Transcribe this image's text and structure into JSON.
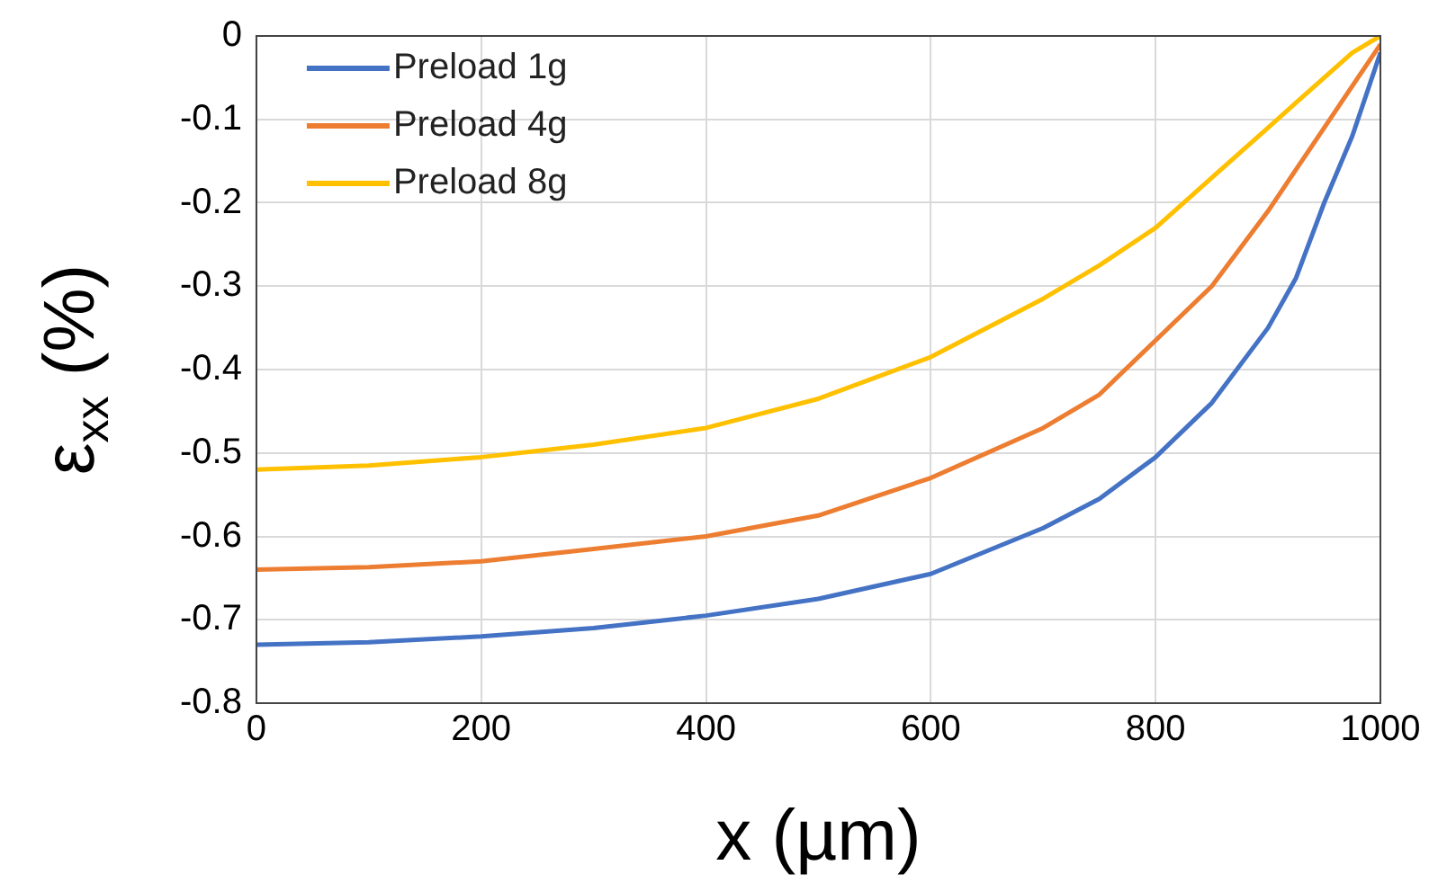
{
  "chart_data": {
    "type": "line",
    "xlabel": "x (µm)",
    "ylabel": "ε$_{xx}$ (%)",
    "x": [
      0,
      100,
      200,
      300,
      400,
      500,
      600,
      700,
      750,
      800,
      850,
      900,
      925,
      950,
      975,
      1000
    ],
    "xlim": [
      0,
      1000
    ],
    "xticks": [
      0,
      200,
      400,
      600,
      800,
      1000
    ],
    "ylim": [
      -0.8,
      0
    ],
    "yticks": [
      -0.8,
      -0.7,
      -0.6,
      -0.5,
      -0.4,
      -0.3,
      -0.2,
      -0.1,
      0
    ],
    "grid": true,
    "legend": "top left",
    "marker": "none",
    "line_style": "solid",
    "series": [
      {
        "name": "Preload 1g",
        "color": "#4472c4",
        "values": [
          -0.73,
          -0.727,
          -0.72,
          -0.71,
          -0.695,
          -0.675,
          -0.645,
          -0.59,
          -0.555,
          -0.505,
          -0.44,
          -0.35,
          -0.29,
          -0.2,
          -0.12,
          -0.02
        ]
      },
      {
        "name": "Preload 4g",
        "color": "#ed7d31",
        "values": [
          -0.64,
          -0.637,
          -0.63,
          -0.615,
          -0.6,
          -0.575,
          -0.53,
          -0.47,
          -0.43,
          -0.365,
          -0.3,
          -0.21,
          -0.16,
          -0.11,
          -0.06,
          -0.01
        ]
      },
      {
        "name": "Preload 8g",
        "color": "#ffc000",
        "values": [
          -0.52,
          -0.515,
          -0.505,
          -0.49,
          -0.47,
          -0.435,
          -0.385,
          -0.315,
          -0.275,
          -0.23,
          -0.17,
          -0.11,
          -0.08,
          -0.05,
          -0.02,
          0
        ]
      }
    ]
  }
}
